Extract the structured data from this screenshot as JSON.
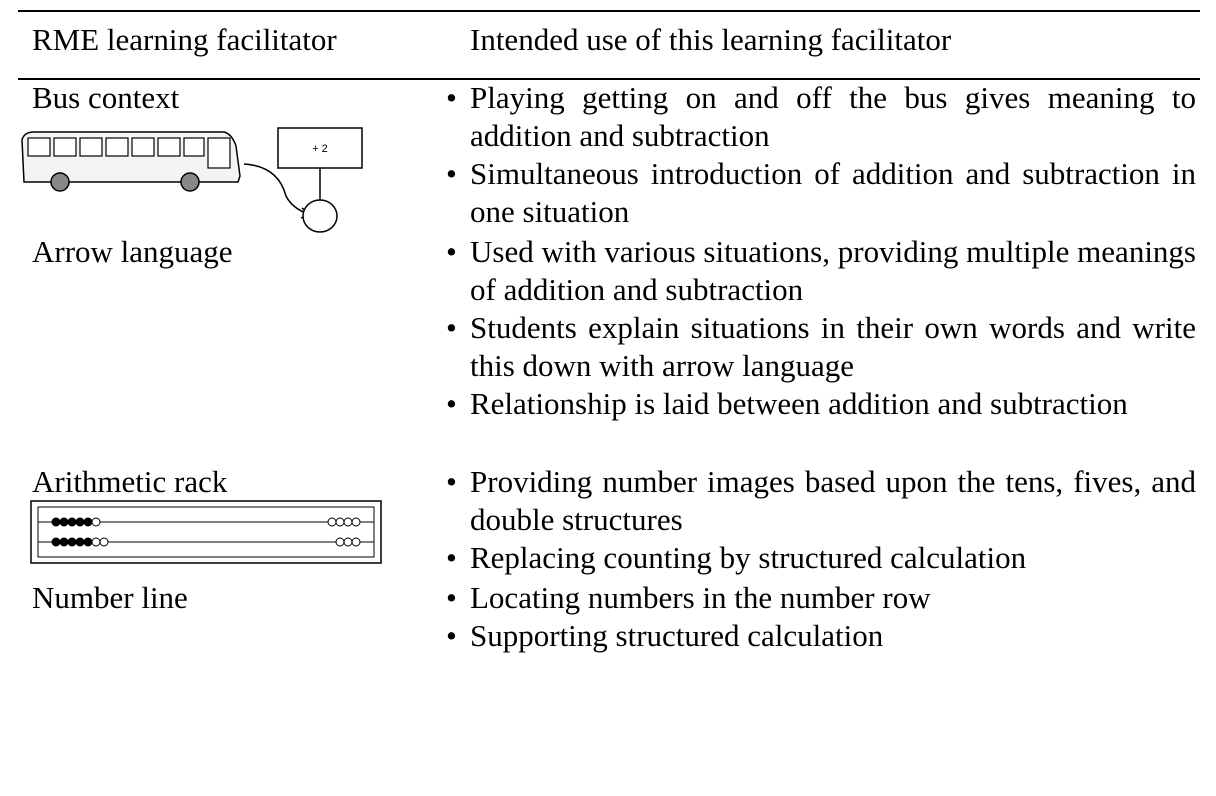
{
  "table": {
    "header": [
      "RME learning facilitator",
      "Intended use of this learning facilitator"
    ],
    "rows": [
      {
        "facilitator": "Bus context",
        "illustration_label": "+ 2",
        "uses": [
          "Playing getting on and off the bus gives meaning to addition and subtraction",
          "Simultaneous introduction of addition and subtraction in one situation"
        ]
      },
      {
        "facilitator": "Arrow language",
        "uses": [
          "Used with various situations, providing multiple meanings of addition and subtraction",
          "Students explain situations in their own words and write this down with arrow language",
          "Relationship is laid between addition and subtraction"
        ]
      },
      {
        "facilitator": "Arithmetic rack",
        "uses": [
          "Providing number images based upon the tens, fives, and double structures",
          "Replacing counting by structured calculation"
        ]
      },
      {
        "facilitator": "Number line",
        "uses": [
          "Locating numbers in the number row",
          "Supporting structured calculation"
        ]
      }
    ]
  }
}
